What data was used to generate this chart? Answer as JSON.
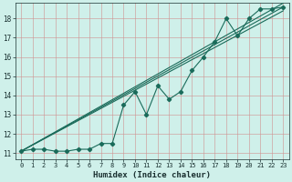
{
  "title": "",
  "xlabel": "Humidex (Indice chaleur)",
  "ylabel": "",
  "xlim": [
    -0.5,
    23.5
  ],
  "ylim": [
    10.7,
    18.8
  ],
  "bg_color": "#cff0ea",
  "grid_color": "#d09090",
  "line_color": "#1a6b5a",
  "x_ticks": [
    0,
    1,
    2,
    3,
    4,
    5,
    6,
    7,
    8,
    9,
    10,
    11,
    12,
    13,
    14,
    15,
    16,
    17,
    18,
    19,
    20,
    21,
    22,
    23
  ],
  "y_ticks": [
    11,
    12,
    13,
    14,
    15,
    16,
    17,
    18
  ],
  "line1_x": [
    0,
    1,
    2,
    3,
    4,
    5,
    6,
    7,
    8,
    9,
    10,
    11,
    12,
    13,
    14,
    15,
    16,
    17,
    18,
    19,
    20,
    21,
    22,
    23
  ],
  "line1_y": [
    11.1,
    11.2,
    11.2,
    11.1,
    11.1,
    11.2,
    11.2,
    11.5,
    11.5,
    13.5,
    14.2,
    13.0,
    14.5,
    13.8,
    14.2,
    15.3,
    16.0,
    16.8,
    18.0,
    17.1,
    18.0,
    18.5,
    18.5,
    18.6
  ],
  "line2_y_start": 11.1,
  "line2_y_end": 18.4,
  "line3_y_start": 11.1,
  "line3_y_end": 18.6,
  "line4_y_start": 11.1,
  "line4_y_end": 18.8
}
